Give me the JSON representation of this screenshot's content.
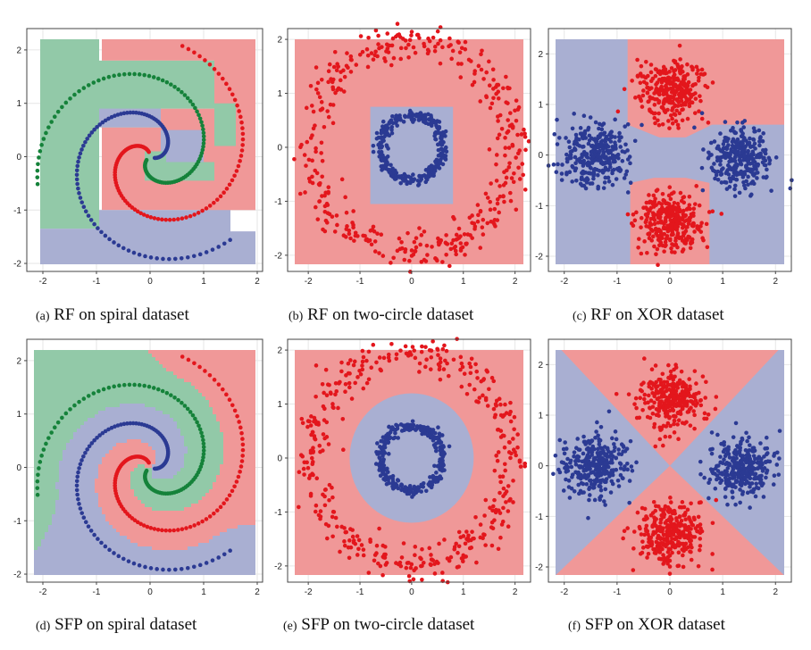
{
  "figure": {
    "captions": [
      {
        "tag": "(a)",
        "text": "RF on spiral dataset"
      },
      {
        "tag": "(b)",
        "text": "RF on two-circle dataset"
      },
      {
        "tag": "(c)",
        "text": "RF on XOR dataset"
      },
      {
        "tag": "(d)",
        "text": "SFP on spiral dataset"
      },
      {
        "tag": "(e)",
        "text": "SFP on two-circle dataset"
      },
      {
        "tag": "(f)",
        "text": "SFP on XOR dataset"
      }
    ]
  },
  "colors": {
    "red_region": "#f09898",
    "blue_region": "#a9afd2",
    "green_region": "#92c9a8",
    "red_point": "#e3161c",
    "blue_point": "#2b3a93",
    "green_point": "#15823a",
    "frame": "#444444",
    "grid": "#e6e6e6"
  },
  "chart_data": [
    {
      "type": "scatter",
      "panel": "a",
      "dataset": "spiral",
      "method": "RF",
      "xlim": [
        -2.3,
        2.1
      ],
      "ylim": [
        -2.15,
        2.4
      ],
      "xticks": [
        "-2",
        "-1",
        "0",
        "1",
        "2"
      ],
      "yticks": [
        "-2",
        "-1",
        "0",
        "1",
        "2"
      ],
      "regions": [
        {
          "class": "red",
          "polygons": [
            [
              [
                -0.9,
                2.25
              ],
              [
                2.0,
                2.25
              ],
              [
                2.0,
                -1.0
              ],
              [
                1.5,
                -1.0
              ],
              [
                1.5,
                -1.4
              ],
              [
                0.9,
                -1.4
              ],
              [
                0.9,
                -1.0
              ],
              [
                -0.9,
                -1.0
              ],
              [
                -0.9,
                0.5
              ],
              [
                0.2,
                0.5
              ],
              [
                0.2,
                0.9
              ],
              [
                1.2,
                0.9
              ],
              [
                1.2,
                1.8
              ],
              [
                -0.9,
                1.8
              ]
            ],
            [
              [
                -0.9,
                0.55
              ],
              [
                0.2,
                0.55
              ],
              [
                0.2,
                0.1
              ],
              [
                -0.1,
                0.1
              ],
              [
                -0.1,
                -0.45
              ],
              [
                1.0,
                -0.45
              ],
              [
                1.0,
                -0.65
              ],
              [
                -0.9,
                -0.65
              ]
            ]
          ]
        },
        {
          "class": "green",
          "polygons": [
            [
              [
                -2.05,
                2.25
              ],
              [
                -0.95,
                2.25
              ],
              [
                -0.95,
                1.8
              ],
              [
                1.2,
                1.8
              ],
              [
                1.2,
                0.9
              ],
              [
                0.2,
                0.9
              ],
              [
                0.2,
                0.55
              ],
              [
                -0.95,
                0.55
              ],
              [
                -0.95,
                -1.35
              ],
              [
                -2.05,
                -1.35
              ]
            ],
            [
              [
                -0.1,
                0.1
              ],
              [
                0.3,
                0.1
              ],
              [
                0.3,
                -0.1
              ],
              [
                1.2,
                -0.1
              ],
              [
                1.2,
                -0.45
              ],
              [
                -0.1,
                -0.45
              ]
            ],
            [
              [
                1.2,
                1.0
              ],
              [
                1.6,
                1.0
              ],
              [
                1.6,
                0.2
              ],
              [
                1.2,
                0.2
              ]
            ]
          ]
        },
        {
          "class": "blue",
          "polygons": [
            [
              [
                -2.05,
                -1.35
              ],
              [
                -0.95,
                -1.35
              ],
              [
                -0.95,
                -1.0
              ],
              [
                1.5,
                -1.0
              ],
              [
                1.5,
                -1.4
              ],
              [
                2.0,
                -1.4
              ],
              [
                2.0,
                -2.05
              ],
              [
                -2.05,
                -2.05
              ]
            ],
            [
              [
                -0.95,
                0.9
              ],
              [
                0.2,
                0.9
              ],
              [
                0.2,
                0.55
              ],
              [
                -0.95,
                0.55
              ]
            ],
            [
              [
                0.2,
                0.5
              ],
              [
                1.0,
                0.5
              ],
              [
                1.0,
                -0.1
              ],
              [
                0.3,
                -0.1
              ],
              [
                0.3,
                0.1
              ],
              [
                0.2,
                0.1
              ]
            ]
          ]
        }
      ],
      "series": [
        {
          "class": "red",
          "kind": "spiral",
          "angle_offset_deg": 90,
          "t_range": [
            0.25,
            6.0
          ],
          "r_per_rad": 0.36,
          "points": 100
        },
        {
          "class": "green",
          "kind": "spiral",
          "angle_offset_deg": 210,
          "t_range": [
            0.25,
            6.0
          ],
          "r_per_rad": 0.36,
          "points": 100
        },
        {
          "class": "blue",
          "kind": "spiral",
          "angle_offset_deg": 330,
          "t_range": [
            0.25,
            6.0
          ],
          "r_per_rad": 0.36,
          "points": 100
        }
      ]
    },
    {
      "type": "scatter",
      "panel": "b",
      "dataset": "two-circle",
      "method": "RF",
      "xlim": [
        -2.4,
        2.3
      ],
      "ylim": [
        -2.3,
        2.2
      ],
      "xticks": [
        "-2",
        "-1",
        "0",
        "1",
        "2"
      ],
      "yticks": [
        "-2",
        "-1",
        "0",
        "1",
        "2"
      ],
      "background": "red",
      "regions": [
        {
          "class": "blue",
          "polygons": [
            [
              [
                -0.8,
                0.75
              ],
              [
                0.8,
                0.75
              ],
              [
                0.8,
                -1.05
              ],
              [
                -0.8,
                -1.05
              ]
            ]
          ]
        }
      ],
      "series": [
        {
          "class": "red",
          "kind": "ring",
          "center": [
            0,
            0
          ],
          "radius": 1.95,
          "noise": 0.17,
          "points": 420
        },
        {
          "class": "blue",
          "kind": "ring",
          "center": [
            0,
            0
          ],
          "radius": 0.6,
          "noise": 0.05,
          "points": 320
        }
      ]
    },
    {
      "type": "scatter",
      "panel": "c",
      "dataset": "XOR",
      "method": "RF",
      "xlim": [
        -2.3,
        2.3
      ],
      "ylim": [
        -2.3,
        2.5
      ],
      "xticks": [
        "-2",
        "-1",
        "0",
        "1",
        "2"
      ],
      "yticks": [
        "-2",
        "-1",
        "0",
        "1",
        "2"
      ],
      "background": "blue",
      "regions": [
        {
          "class": "red",
          "polygons": [
            [
              [
                -0.8,
                2.45
              ],
              [
                2.2,
                2.45
              ],
              [
                2.2,
                0.6
              ],
              [
                0.8,
                0.6
              ],
              [
                0.3,
                0.35
              ],
              [
                -0.2,
                0.35
              ],
              [
                -0.8,
                0.6
              ]
            ],
            [
              [
                -0.75,
                -0.55
              ],
              [
                -0.3,
                -0.45
              ],
              [
                0.3,
                -0.45
              ],
              [
                0.75,
                -0.55
              ],
              [
                0.75,
                -2.2
              ],
              [
                -0.75,
                -2.2
              ]
            ]
          ]
        }
      ],
      "series": [
        {
          "class": "red",
          "kind": "blob",
          "center": [
            0,
            1.3
          ],
          "spread": 0.3,
          "points": 300
        },
        {
          "class": "red",
          "kind": "blob",
          "center": [
            0,
            -1.35
          ],
          "spread": 0.3,
          "points": 300
        },
        {
          "class": "blue",
          "kind": "blob",
          "center": [
            -1.4,
            0
          ],
          "spread": 0.3,
          "points": 300
        },
        {
          "class": "blue",
          "kind": "blob",
          "center": [
            1.35,
            -0.05
          ],
          "spread": 0.3,
          "points": 300
        }
      ]
    },
    {
      "type": "scatter",
      "panel": "d",
      "dataset": "spiral",
      "method": "SFP",
      "xlim": [
        -2.3,
        2.1
      ],
      "ylim": [
        -2.15,
        2.4
      ],
      "xticks": [
        "-2",
        "-1",
        "0",
        "1",
        "2"
      ],
      "yticks": [
        "-2",
        "-1",
        "0",
        "1",
        "2"
      ],
      "regions": [
        {
          "class": "spiral-bands",
          "description_free": true
        }
      ],
      "series": [
        {
          "class": "red",
          "kind": "spiral",
          "angle_offset_deg": 90,
          "t_range": [
            0.25,
            6.0
          ],
          "r_per_rad": 0.36,
          "points": 100
        },
        {
          "class": "green",
          "kind": "spiral",
          "angle_offset_deg": 210,
          "t_range": [
            0.25,
            6.0
          ],
          "r_per_rad": 0.36,
          "points": 100
        },
        {
          "class": "blue",
          "kind": "spiral",
          "angle_offset_deg": 330,
          "t_range": [
            0.25,
            6.0
          ],
          "r_per_rad": 0.36,
          "points": 100
        }
      ]
    },
    {
      "type": "scatter",
      "panel": "e",
      "dataset": "two-circle",
      "method": "SFP",
      "xlim": [
        -2.4,
        2.3
      ],
      "ylim": [
        -2.3,
        2.2
      ],
      "xticks": [
        "-2",
        "-1",
        "0",
        "1",
        "2"
      ],
      "yticks": [
        "-2",
        "-1",
        "0",
        "1",
        "2"
      ],
      "background": "red",
      "regions": [
        {
          "class": "blue",
          "circle": {
            "center": [
              0,
              0
            ],
            "radius": 1.2
          }
        }
      ],
      "series": [
        {
          "class": "red",
          "kind": "ring",
          "center": [
            0,
            0
          ],
          "radius": 1.95,
          "noise": 0.17,
          "points": 420
        },
        {
          "class": "blue",
          "kind": "ring",
          "center": [
            0,
            0
          ],
          "radius": 0.6,
          "noise": 0.05,
          "points": 320
        }
      ]
    },
    {
      "type": "scatter",
      "panel": "f",
      "dataset": "XOR",
      "method": "SFP",
      "xlim": [
        -2.3,
        2.3
      ],
      "ylim": [
        -2.3,
        2.5
      ],
      "xticks": [
        "-2",
        "-1",
        "0",
        "1",
        "2"
      ],
      "yticks": [
        "-2",
        "-1",
        "0",
        "1",
        "2"
      ],
      "background": "blue",
      "regions": [
        {
          "class": "red",
          "polygons": [
            [
              [
                -2.2,
                2.45
              ],
              [
                2.2,
                2.45
              ],
              [
                0,
                0
              ]
            ],
            [
              [
                -2.2,
                -2.2
              ],
              [
                2.2,
                -2.2
              ],
              [
                0,
                0
              ]
            ]
          ]
        }
      ],
      "series": [
        {
          "class": "red",
          "kind": "blob",
          "center": [
            0,
            1.3
          ],
          "spread": 0.3,
          "points": 300
        },
        {
          "class": "red",
          "kind": "blob",
          "center": [
            0,
            -1.35
          ],
          "spread": 0.3,
          "points": 300
        },
        {
          "class": "blue",
          "kind": "blob",
          "center": [
            -1.4,
            0
          ],
          "spread": 0.3,
          "points": 300
        },
        {
          "class": "blue",
          "kind": "blob",
          "center": [
            1.35,
            -0.05
          ],
          "spread": 0.3,
          "points": 300
        }
      ]
    }
  ]
}
